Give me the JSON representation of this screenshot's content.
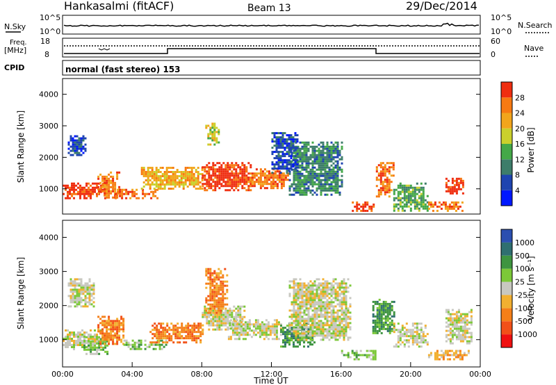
{
  "header": {
    "station": "Hankasalmi (fitACF)",
    "beam": "Beam 13",
    "date": "29/Dec/2014"
  },
  "strips": {
    "nsky_label": "N.Sky",
    "nsearch_label": "N.Search",
    "noise_ticks_left": [
      "10^5",
      "10^0"
    ],
    "noise_ticks_right": [
      "10^5",
      "10^0"
    ],
    "freq_label_1": "Freq.",
    "freq_label_2": "[MHz]",
    "freq_ticks": [
      "18",
      "8"
    ],
    "nave_label": "Nave",
    "nave_ticks": [
      "60",
      "0"
    ],
    "cpid_label": "CPID",
    "cpid_text": "normal (fast stereo) 153"
  },
  "colors": {
    "power": [
      "#0018ff",
      "#1e44b0",
      "#3d7d6a",
      "#44a848",
      "#cad02c",
      "#f2a51c",
      "#f77a12",
      "#ef2e10"
    ],
    "velocity": [
      "#ef1010",
      "#f25018",
      "#f57f18",
      "#f2b030",
      "#c8c8c0",
      "#7cc838",
      "#3e9440",
      "#2f6f70",
      "#2b4fb0"
    ]
  },
  "chart_data": [
    {
      "type": "heatmap",
      "panel": "power",
      "ylabel": "Slant Range [km]",
      "y_ticks": [
        "1000",
        "2000",
        "3000",
        "4000"
      ],
      "colorbar_label": "Power [dB]",
      "colorbar_ticks": [
        "4",
        "8",
        "12",
        "16",
        "20",
        "24",
        "28"
      ],
      "ylim": [
        200,
        4500
      ],
      "xlim": [
        0,
        24
      ],
      "features": [
        {
          "t0": 0.0,
          "t1": 2.4,
          "r0": 700,
          "r1": 1200,
          "level": 7
        },
        {
          "t0": 2.0,
          "t1": 3.2,
          "r0": 750,
          "r1": 1550,
          "level": 6
        },
        {
          "t0": 3.0,
          "t1": 5.5,
          "r0": 700,
          "r1": 1000,
          "level": 6
        },
        {
          "t0": 4.5,
          "t1": 8.0,
          "r0": 1000,
          "r1": 1700,
          "level": 5
        },
        {
          "t0": 8.0,
          "t1": 10.8,
          "r0": 950,
          "r1": 1850,
          "level": 7
        },
        {
          "t0": 10.5,
          "t1": 13.0,
          "r0": 1000,
          "r1": 1650,
          "level": 6
        },
        {
          "t0": 13.0,
          "t1": 16.0,
          "r0": 800,
          "r1": 2500,
          "level": 2
        },
        {
          "t0": 16.5,
          "t1": 18.0,
          "r0": 300,
          "r1": 600,
          "level": 7
        },
        {
          "t0": 18.0,
          "t1": 19.0,
          "r0": 750,
          "r1": 1850,
          "level": 6
        },
        {
          "t0": 19.0,
          "t1": 21.0,
          "r0": 300,
          "r1": 1200,
          "level": 3
        },
        {
          "t0": 21.0,
          "t1": 23.0,
          "r0": 300,
          "r1": 600,
          "level": 6
        },
        {
          "t0": 22.0,
          "t1": 23.0,
          "r0": 850,
          "r1": 1350,
          "level": 7
        },
        {
          "t0": 0.3,
          "t1": 1.3,
          "r0": 2100,
          "r1": 2700,
          "level": 1
        },
        {
          "t0": 12.0,
          "t1": 13.5,
          "r0": 1500,
          "r1": 2800,
          "level": 1
        },
        {
          "t0": 8.2,
          "t1": 9.0,
          "r0": 2400,
          "r1": 3100,
          "level": 4
        }
      ]
    },
    {
      "type": "heatmap",
      "panel": "velocity",
      "ylabel": "Slant Range [km]",
      "y_ticks": [
        "1000",
        "2000",
        "3000",
        "4000"
      ],
      "xlabel": "Time UT",
      "x_ticks": [
        "00:00",
        "04:00",
        "08:00",
        "12:00",
        "16:00",
        "20:00",
        "00:00"
      ],
      "colorbar_label": "Velocity [m s⁻¹]",
      "colorbar_ticks": [
        "1000",
        "500",
        "100",
        "25",
        "-25",
        "-100",
        "-500",
        "-1000"
      ],
      "ylim": [
        200,
        4500
      ],
      "xlim": [
        0,
        24
      ],
      "features": [
        {
          "t0": 0.0,
          "t1": 2.2,
          "r0": 700,
          "r1": 1300,
          "level": 4
        },
        {
          "t0": 0.3,
          "t1": 1.8,
          "r0": 2000,
          "r1": 2800,
          "level": 4
        },
        {
          "t0": 1.2,
          "t1": 2.6,
          "r0": 600,
          "r1": 1100,
          "level": 5
        },
        {
          "t0": 2.0,
          "t1": 3.5,
          "r0": 900,
          "r1": 1700,
          "level": 2
        },
        {
          "t0": 3.5,
          "t1": 6.0,
          "r0": 700,
          "r1": 1000,
          "level": 5
        },
        {
          "t0": 5.0,
          "t1": 8.0,
          "r0": 900,
          "r1": 1500,
          "level": 2
        },
        {
          "t0": 8.0,
          "t1": 10.5,
          "r0": 1300,
          "r1": 2000,
          "level": 4
        },
        {
          "t0": 8.2,
          "t1": 9.5,
          "r0": 1800,
          "r1": 3100,
          "level": 2
        },
        {
          "t0": 9.5,
          "t1": 12.5,
          "r0": 1000,
          "r1": 1600,
          "level": 4
        },
        {
          "t0": 12.5,
          "t1": 14.5,
          "r0": 800,
          "r1": 1500,
          "level": 6
        },
        {
          "t0": 13.0,
          "t1": 16.5,
          "r0": 1000,
          "r1": 2800,
          "level": 4
        },
        {
          "t0": 16.0,
          "t1": 18.0,
          "r0": 400,
          "r1": 700,
          "level": 5
        },
        {
          "t0": 17.8,
          "t1": 19.0,
          "r0": 1200,
          "r1": 2200,
          "level": 6
        },
        {
          "t0": 19.0,
          "t1": 21.0,
          "r0": 800,
          "r1": 1500,
          "level": 4
        },
        {
          "t0": 21.0,
          "t1": 23.5,
          "r0": 400,
          "r1": 700,
          "level": 3
        },
        {
          "t0": 22.0,
          "t1": 23.5,
          "r0": 900,
          "r1": 1900,
          "level": 4
        }
      ]
    }
  ]
}
